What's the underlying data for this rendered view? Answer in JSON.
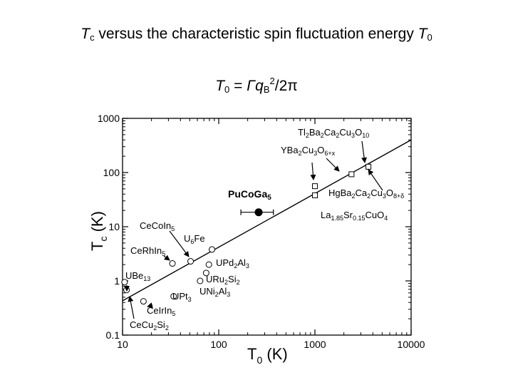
{
  "title": {
    "t": "T",
    "sub": "c",
    "rest": " versus the characteristic spin fluctuation energy ",
    "t2": "T",
    "sub2": "0"
  },
  "formula": {
    "t": "T",
    "sub": "0",
    "eq": " = ",
    "gamma": "Γq",
    "sub2": "B",
    "sup": "2",
    "end": "/2π"
  },
  "chart_data": {
    "type": "scatter",
    "xscale": "log",
    "yscale": "log",
    "xlim": [
      10,
      10000
    ],
    "ylim": [
      0.1,
      1000
    ],
    "xticks": [
      "10",
      "100",
      "1000",
      "10000"
    ],
    "yticks": [
      "0.1",
      "1",
      "10",
      "100",
      "1000"
    ],
    "xlabel": {
      "main": "T",
      "sub": "0",
      "rest": " (K)"
    },
    "ylabel": {
      "main": "T",
      "sub": "c",
      "rest": " (K)"
    },
    "fit_line": {
      "x": [
        10,
        10000
      ],
      "y": [
        0.43,
        400
      ]
    },
    "points": [
      {
        "label": "UBe13",
        "marker": "circle",
        "x": 10.5,
        "y": 0.95
      },
      {
        "label": "CeCu2Si2",
        "marker": "circle",
        "x": 11,
        "y": 0.68
      },
      {
        "label": "CeIrIn5",
        "marker": "circle",
        "x": 16.5,
        "y": 0.42
      },
      {
        "label": "UPt3",
        "marker": "circle",
        "x": 34,
        "y": 0.52
      },
      {
        "label": "CeRhIn5",
        "marker": "circle",
        "x": 33,
        "y": 2.1
      },
      {
        "label": "CeCoIn5",
        "marker": "circle",
        "x": 51,
        "y": 2.3
      },
      {
        "label": "U6Fe",
        "marker": "circle",
        "x": 85,
        "y": 3.8
      },
      {
        "label": "UPd2Al3",
        "marker": "circle",
        "x": 79,
        "y": 2.0
      },
      {
        "label": "URu2Si2",
        "marker": "circle",
        "x": 74,
        "y": 1.4
      },
      {
        "label": "UNi2Al3",
        "marker": "circle",
        "x": 64,
        "y": 1.0
      },
      {
        "label": "PuCoGa5",
        "marker": "filled",
        "x": 260,
        "y": 18.5,
        "xerr": [
          170,
          370
        ]
      },
      {
        "label": "La1.85Sr0.15CuO4",
        "marker": "square",
        "x": 1000,
        "y": 38
      },
      {
        "label": "YBa2Cu3O6+x",
        "marker": "square",
        "x": 1000,
        "y": 56
      },
      {
        "label": "HgBa2Ca2Cu3O8+δ",
        "marker": "square",
        "x": 2400,
        "y": 93
      },
      {
        "label": "Tl2Ba2Ca2Cu3O10",
        "marker": "square",
        "x": 3600,
        "y": 128
      }
    ],
    "labels": {
      "ube13": {
        "a": "UBe",
        "b": "13"
      },
      "cecu2si2": {
        "a": "CeCu",
        "b": "2",
        "c": "Si",
        "d": "2"
      },
      "ceirin5": {
        "a": "CeIrIn",
        "b": "5"
      },
      "upt3": {
        "a": "UPt",
        "b": "3"
      },
      "cerhin5": {
        "a": "CeRhIn",
        "b": "5"
      },
      "cecoin5": {
        "a": "CeCoIn",
        "b": "5"
      },
      "u6fe": {
        "a": "U",
        "b": "6",
        "c": "Fe"
      },
      "upd2al3": {
        "a": "UPd",
        "b": "2",
        "c": "Al",
        "d": "3"
      },
      "uru2si2": {
        "a": "URu",
        "b": "2",
        "c": "Si",
        "d": "2"
      },
      "uni2al3": {
        "a": "UNi",
        "b": "2",
        "c": "Al",
        "d": "3"
      },
      "pucoga5": {
        "a": "PuCoGa",
        "b": "5"
      },
      "lsco": {
        "a": "La",
        "b": "1.85",
        "c": "Sr",
        "d": "0.15",
        "e": "CuO",
        "f": "4"
      },
      "ybco": {
        "a": "YBa",
        "b": "2",
        "c": "Cu",
        "d": "3",
        "e": "O",
        "f": "6+x"
      },
      "hg": {
        "a": "HgBa",
        "b": "2",
        "c": "Ca",
        "d": "2",
        "e": "Cu",
        "f": "3",
        "g": "O",
        "h": "8+δ"
      },
      "tl": {
        "a": "Tl",
        "b": "2",
        "c": "Ba",
        "d": "2",
        "e": "Ca",
        "f": "2",
        "g": "Cu",
        "h": "3",
        "i": "O",
        "j": "10"
      }
    }
  }
}
